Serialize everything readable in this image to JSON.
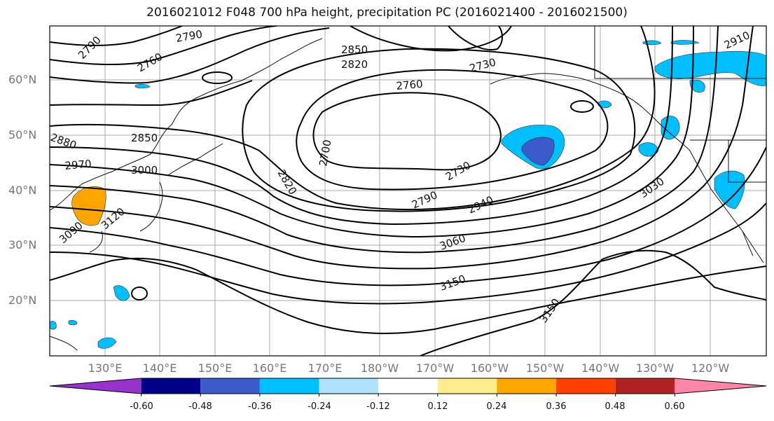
{
  "title": "2016021012 F048 700 hPa height, precipitation PC (2016021400 - 2016021500)",
  "lat_labels": [
    "60°N",
    "50°N",
    "40°N",
    "30°N",
    "20°N"
  ],
  "lon_labels": [
    "130°E",
    "140°E",
    "150°E",
    "160°E",
    "170°E",
    "180°W",
    "170°W",
    "160°W",
    "150°W",
    "140°W",
    "130°W",
    "120°W"
  ],
  "contour_labels": [
    "2790",
    "2790",
    "2760",
    "2850",
    "2820",
    "2730",
    "2760",
    "2910",
    "2850",
    "2970",
    "3000",
    "2700",
    "2820",
    "2730",
    "2790",
    "2940",
    "3030",
    "3060",
    "3150",
    "3150",
    "3090",
    "3120",
    "2880"
  ],
  "colorbar": {
    "labels": [
      "-0.60",
      "-0.48",
      "-0.36",
      "-0.24",
      "-0.12",
      "0.12",
      "0.24",
      "0.36",
      "0.48",
      "0.60"
    ],
    "colors": [
      "#9932cc",
      "#00008b",
      "#3b5bcb",
      "#00bfff",
      "#b0e2ff",
      "#ffffff",
      "#ffec8b",
      "#ffa500",
      "#ff4000",
      "#b22222",
      "#ff86a9"
    ]
  }
}
